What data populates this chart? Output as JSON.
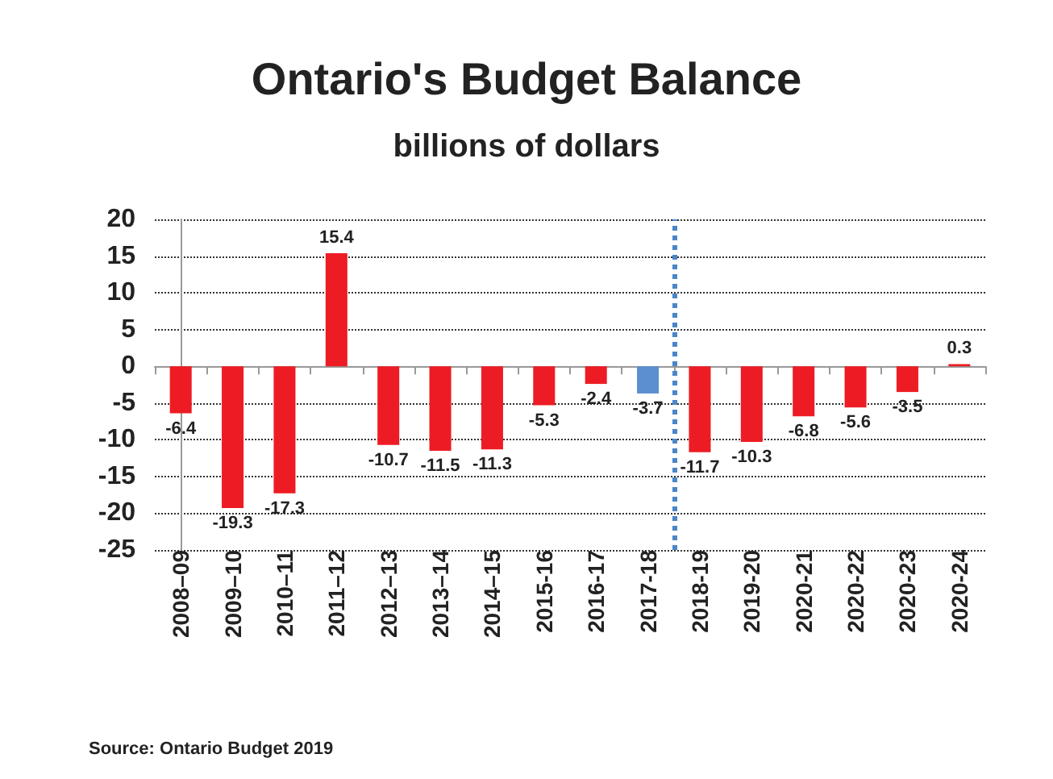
{
  "chart_data": {
    "type": "bar",
    "title": "Ontario's Budget Balance",
    "subtitle": "billions of dollars",
    "categories": [
      "2008–09",
      "2009–10",
      "2010–11",
      "2011–12",
      "2012–13",
      "2013–14",
      "2014–15",
      "2015-16",
      "2016-17",
      "2017-18",
      "2018-19",
      "2019-20",
      "2020-21",
      "2020-22",
      "2020-23",
      "2020-24"
    ],
    "values": [
      -6.4,
      -19.3,
      -17.3,
      15.4,
      -10.7,
      -11.5,
      -11.3,
      -5.3,
      -2.4,
      -3.7,
      -11.7,
      -10.3,
      -6.8,
      -5.6,
      -3.5,
      0.3
    ],
    "colors": [
      "#ed1c24",
      "#ed1c24",
      "#ed1c24",
      "#ed1c24",
      "#ed1c24",
      "#ed1c24",
      "#ed1c24",
      "#ed1c24",
      "#ed1c24",
      "#5b8fd0",
      "#ed1c24",
      "#ed1c24",
      "#ed1c24",
      "#ed1c24",
      "#ed1c24",
      "#ed1c24"
    ],
    "ylim": [
      -25,
      20
    ],
    "yticks": [
      -25,
      -20,
      -15,
      -10,
      -5,
      0,
      5,
      10,
      15,
      20
    ],
    "grid": "y",
    "data_labels": true,
    "ref_lines": [
      {
        "axis": "x",
        "value": "2017-18",
        "color": "#4a86c8",
        "line_style": "dotted"
      }
    ],
    "annotations": [
      "Source: Ontario Budget 2019"
    ]
  }
}
